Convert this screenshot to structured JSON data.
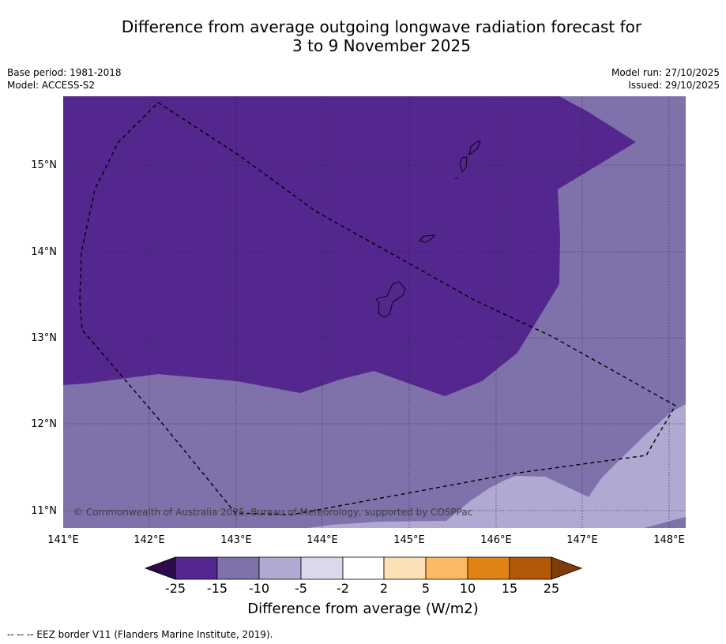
{
  "title": {
    "line1": "Difference from average outgoing longwave radiation forecast for",
    "line2": "3 to 9 November 2025"
  },
  "meta": {
    "base_period": "Base period: 1981-2018",
    "model": "Model: ACCESS-S2",
    "model_run": "Model run: 27/10/2025",
    "issued": "Issued: 29/10/2025"
  },
  "map": {
    "lon_labels": [
      "141°E",
      "142°E",
      "143°E",
      "144°E",
      "145°E",
      "146°E",
      "147°E",
      "148°E"
    ],
    "lat_labels": [
      "15°N",
      "14°N",
      "13°N",
      "12°N",
      "11°N"
    ],
    "copyright": "© Commonwealth of Australia 2025, Bureau of Meteorology, supported by COSPPac",
    "colors": {
      "strong_negative": "#54278f",
      "moderate_negative": "#7f72ab",
      "weak_negative": "#b0a9d2",
      "background": "#ffffff"
    }
  },
  "colorbar": {
    "title": "Difference from average (W/m2)",
    "tick_labels": [
      "-25",
      "-15",
      "-10",
      "-5",
      "-2",
      "2",
      "5",
      "10",
      "15",
      "25"
    ],
    "colors": [
      "#2e0a4a",
      "#54278f",
      "#7f72ab",
      "#b0a9d2",
      "#d9d9eb",
      "#ffffff",
      "#fde0b6",
      "#fdb863",
      "#e08214",
      "#b35806",
      "#7f3b08"
    ]
  },
  "footer": {
    "legend": "--  --  -- EEZ border V11 (Flanders Marine Institute, 2019)."
  }
}
